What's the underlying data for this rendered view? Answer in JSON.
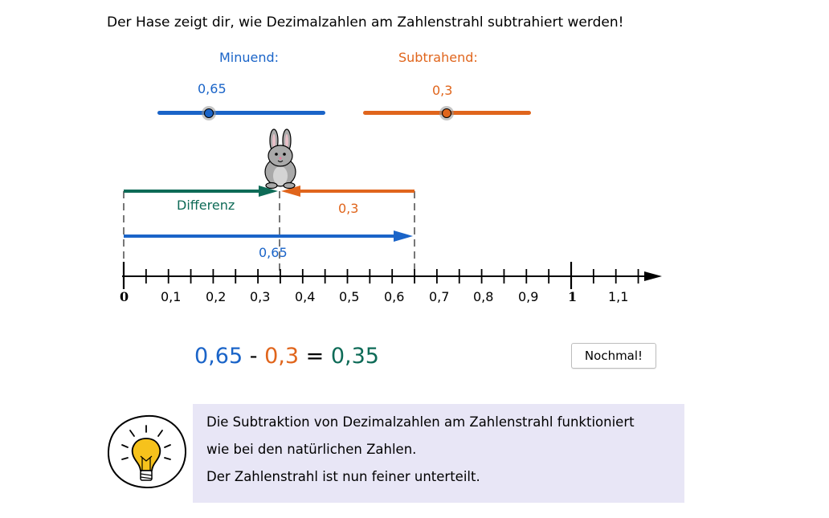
{
  "instruction": "Der Hase zeigt dir, wie Dezimalzahlen am Zahlenstrahl subtrahiert werden!",
  "colors": {
    "minuend": "#1a64c8",
    "subtrahend": "#e0651c",
    "difference": "#0e6b57",
    "tip_bg": "#e8e6f6"
  },
  "sliders": {
    "minuend": {
      "label": "Minuend:",
      "value_text": "0,65",
      "value": 0.65,
      "min": 0,
      "max": 2.5
    },
    "subtrahend": {
      "label": "Subtrahend:",
      "value_text": "0,3",
      "value": 0.3,
      "min": 0,
      "max": 0.6
    }
  },
  "number_line": {
    "tick_labels": [
      "0",
      "0,1",
      "0,2",
      "0,3",
      "0,4",
      "0,5",
      "0,6",
      "0,7",
      "0,8",
      "0,9",
      "1",
      "1,1"
    ],
    "difference_label": "Differenz",
    "subtrahend_label": "0,3",
    "minuend_label": "0,65"
  },
  "equation": {
    "minuend": "0,65",
    "minus": "-",
    "subtrahend": "0,3",
    "equals": "=",
    "result": "0,35"
  },
  "again_button": "Nochmal!",
  "tip": {
    "lines": [
      "Die Subtraktion von Dezimalzahlen am Zahlenstrahl funktioniert",
      "wie bei den natürlichen Zahlen.",
      "Der Zahlenstrahl ist nun feiner unterteilt."
    ]
  }
}
